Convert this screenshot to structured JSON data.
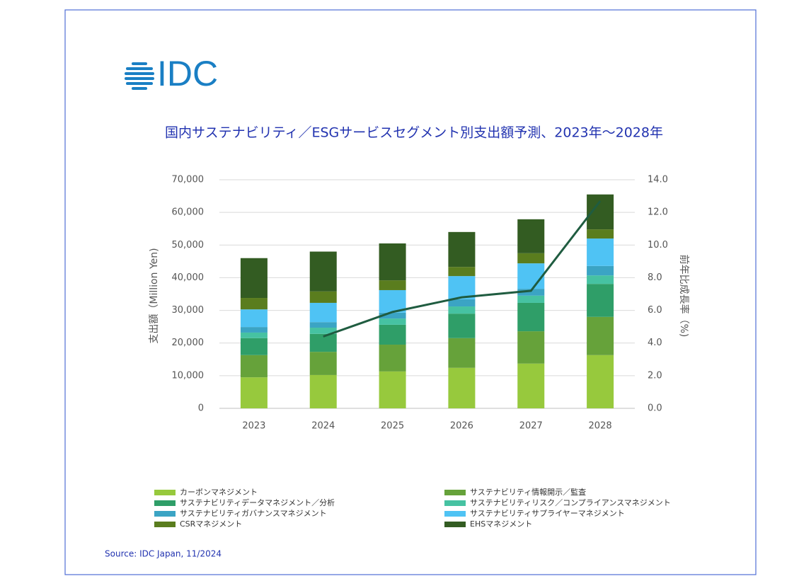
{
  "logo": "IDC",
  "source": "Source: IDC Japan, 11/2024",
  "chart_data": {
    "type": "bar",
    "stacked": true,
    "title": "国内サステナビリティ／ESGサービスセグメント別支出額予測、2023年～2028年",
    "y_label": "支出額（Million Yen)",
    "y2_label": "前年比成長率（%)",
    "categories": [
      "2023",
      "2024",
      "2025",
      "2026",
      "2027",
      "2028"
    ],
    "ylim": [
      0,
      70000
    ],
    "yticks": [
      0,
      {
        "value": 10000,
        "label": "10,000"
      },
      {
        "value": 20000,
        "label": "20,000"
      },
      {
        "value": 30000,
        "label": "30,000"
      },
      {
        "value": 40000,
        "label": "40,000"
      },
      {
        "value": 50000,
        "label": "50,000"
      },
      {
        "value": 60000,
        "label": "60,000"
      },
      {
        "value": 70000,
        "label": "70,000"
      }
    ],
    "y2lim": [
      0,
      14
    ],
    "y2ticks": [
      {
        "value": 0,
        "label": "0.0"
      },
      {
        "value": 2,
        "label": "2.0"
      },
      {
        "value": 4,
        "label": "4.0"
      },
      {
        "value": 6,
        "label": "6.0"
      },
      {
        "value": 8,
        "label": "8.0"
      },
      {
        "value": 10,
        "label": "10.0"
      },
      {
        "value": 12,
        "label": "12.0"
      },
      {
        "value": 14,
        "label": "14.0"
      }
    ],
    "grid": true,
    "series": [
      {
        "name": "カーボンマネジメント",
        "color": "#97c93d",
        "values": [
          9500,
          10200,
          11300,
          12400,
          13700,
          16300
        ]
      },
      {
        "name": "サステナビリティ情報開示／監査",
        "color": "#66a23a",
        "values": [
          6800,
          7100,
          8200,
          9100,
          9900,
          11700
        ]
      },
      {
        "name": "サステナビリティデータマネジメント／分析",
        "color": "#2f9e68",
        "values": [
          5200,
          5500,
          6100,
          7500,
          8700,
          10100
        ]
      },
      {
        "name": "サステナビリティリスク／コンプライアンスマネジメント",
        "color": "#46c2a2",
        "values": [
          1700,
          1900,
          1900,
          2200,
          2200,
          2600
        ]
      },
      {
        "name": "サステナビリティガバナンスマネジメント",
        "color": "#3ba4c4",
        "values": [
          1700,
          1700,
          1800,
          2200,
          2100,
          2900
        ]
      },
      {
        "name": "サステナビリティサプライヤーマネジメント",
        "color": "#4fc3f4",
        "values": [
          5400,
          5900,
          6900,
          7100,
          7800,
          8400
        ]
      },
      {
        "name": "CSRマネジメント",
        "color": "#5a7d1e",
        "values": [
          3500,
          3500,
          3000,
          2800,
          3100,
          2800
        ]
      },
      {
        "name": "EHSマネジメント",
        "color": "#335c22",
        "values": [
          12200,
          12200,
          11300,
          10700,
          10400,
          10700
        ]
      },
      {
        "type": "line",
        "axis": "y2",
        "color": "#1f5c40",
        "values": [
          null,
          4.4,
          5.9,
          6.8,
          7.2,
          12.7
        ]
      }
    ]
  }
}
